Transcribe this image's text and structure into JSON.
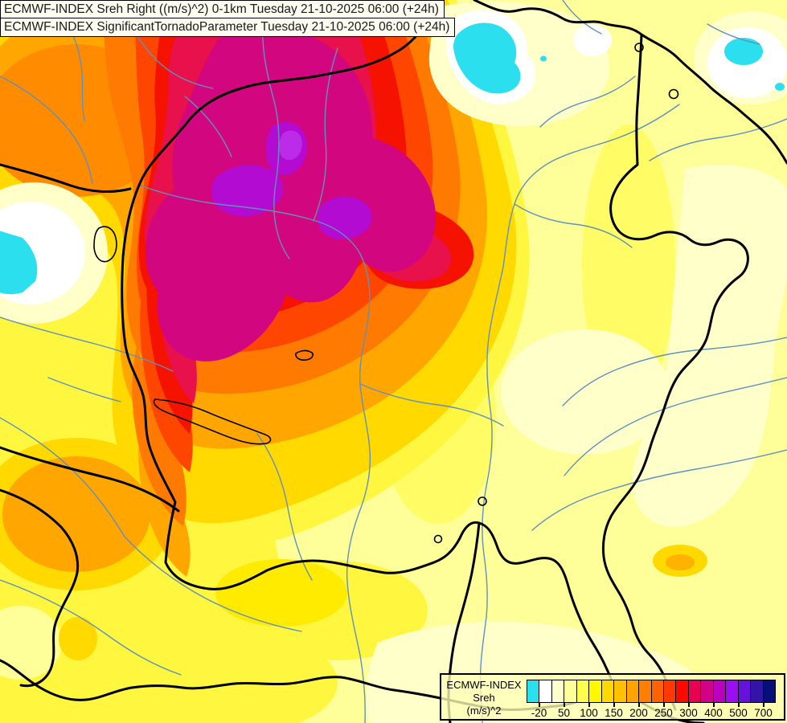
{
  "header": {
    "title_line1": "ECMWF-INDEX Sreh Right ((m/s)^2) 0-1km Tuesday 21-10-2025 06:00 (+24h)",
    "title_line2": "ECMWF-INDEX SignificantTornadoParameter Tuesday 21-10-2025 06:00 (+24h)"
  },
  "legend": {
    "product": "ECMWF-INDEX",
    "parameter": "Sreh",
    "units": "(m/s)^2",
    "tick_labels": [
      "-20",
      "50",
      "100",
      "150",
      "200",
      "250",
      "300",
      "400",
      "500",
      "700"
    ],
    "cell_colors": [
      "#2ADFEE",
      "#FFFFFF",
      "#FFFFCC",
      "#FFFF99",
      "#FFFF4D",
      "#FFF800",
      "#FFD900",
      "#FFC100",
      "#FFA400",
      "#FF8000",
      "#FF6300",
      "#FF3900",
      "#FF0800",
      "#E80051",
      "#D20089",
      "#BC00C0",
      "#9D0DF2",
      "#6612DB",
      "#3413A8",
      "#071078"
    ]
  },
  "map": {
    "border_color": "#000000",
    "river_color": "#6090BE",
    "negative_area_color": "#2BDFEE",
    "max_area_color": "#B40BD2"
  }
}
